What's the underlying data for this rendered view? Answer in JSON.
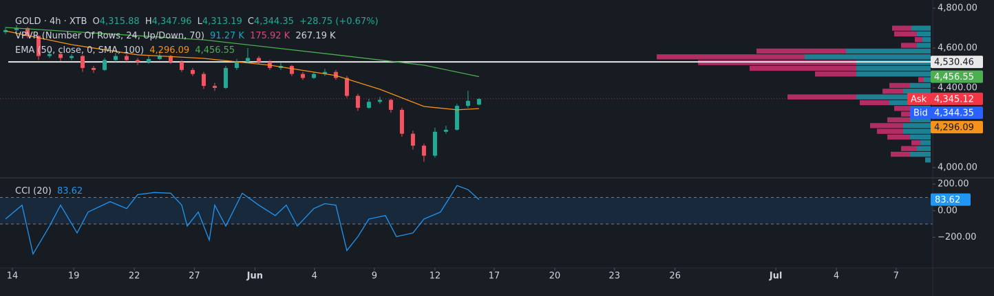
{
  "chart_data": [
    {
      "type": "candlestick",
      "title": "GOLD · 4h · XTB",
      "ohlc_names": [
        "O",
        "H",
        "L",
        "C"
      ],
      "ohlc": [
        {
          "value": 4315.88,
          "label": "4,315.88"
        },
        {
          "value": 4347.96,
          "label": "4,347.96"
        },
        {
          "value": 4313.19,
          "label": "4,313.19"
        },
        {
          "value": 4344.35,
          "label": "4,344.35"
        }
      ],
      "change": "+28.75 (+0.67%)",
      "xlim": [
        -1,
        168.4
      ],
      "ylim": [
        3952,
        4841
      ],
      "yticks": [
        {
          "value": 4000,
          "label": "4,000.00"
        },
        {
          "value": 4400,
          "label": "4,400.00"
        },
        {
          "value": 4600,
          "label": "4,600.00"
        },
        {
          "value": 4800,
          "label": "4,800.00"
        }
      ],
      "up_color": "#22ab94",
      "down_color": "#f7525f",
      "candles": {
        "x": [
          0,
          2,
          4,
          6,
          8,
          10,
          12,
          14,
          16,
          18,
          20,
          22,
          24,
          26,
          28,
          30,
          32,
          34,
          36,
          38,
          40,
          42,
          44,
          46,
          48,
          50,
          52,
          54,
          56,
          58,
          60,
          62,
          64,
          66,
          68,
          70,
          72,
          74,
          76,
          78,
          80,
          82,
          84,
          86
        ],
        "open": [
          4680,
          4690,
          4700,
          4660,
          4560,
          4570,
          4550,
          4560,
          4500,
          4490,
          4540,
          4560,
          4540,
          4530,
          4545,
          4560,
          4530,
          4490,
          4470,
          4410,
          4400,
          4500,
          4530,
          4550,
          4530,
          4500,
          4510,
          4470,
          4450,
          4470,
          4480,
          4450,
          4360,
          4300,
          4330,
          4340,
          4290,
          4170,
          4110,
          4060,
          4180,
          4190,
          4310,
          4315.88
        ],
        "high": [
          4705,
          4715,
          4705,
          4665,
          4585,
          4580,
          4570,
          4565,
          4510,
          4550,
          4575,
          4570,
          4550,
          4560,
          4575,
          4565,
          4540,
          4500,
          4480,
          4425,
          4510,
          4545,
          4600,
          4560,
          4540,
          4525,
          4515,
          4480,
          4480,
          4495,
          4490,
          4460,
          4370,
          4345,
          4355,
          4345,
          4300,
          4185,
          4120,
          4200,
          4210,
          4320,
          4385,
          4347.96
        ],
        "low": [
          4670,
          4680,
          4650,
          4540,
          4550,
          4535,
          4540,
          4480,
          4475,
          4485,
          4530,
          4530,
          4515,
          4520,
          4540,
          4520,
          4480,
          4460,
          4395,
          4385,
          4395,
          4490,
          4525,
          4520,
          4490,
          4490,
          4460,
          4440,
          4445,
          4460,
          4440,
          4350,
          4285,
          4295,
          4320,
          4275,
          4155,
          4090,
          4030,
          4050,
          4170,
          4185,
          4300,
          4313.19
        ],
        "close": [
          4690,
          4700,
          4660,
          4560,
          4570,
          4550,
          4560,
          4500,
          4490,
          4540,
          4560,
          4540,
          4530,
          4545,
          4560,
          4530,
          4490,
          4470,
          4410,
          4400,
          4500,
          4530,
          4550,
          4530,
          4500,
          4510,
          4470,
          4450,
          4470,
          4480,
          4450,
          4360,
          4300,
          4330,
          4340,
          4290,
          4170,
          4110,
          4060,
          4180,
          4190,
          4310,
          4335,
          4344.35
        ]
      },
      "indicator": "EMA (50, close, 0, SMA, 100)",
      "series": [
        {
          "name": "EMA 50",
          "color": "#f7931a",
          "x": [
            0,
            12,
            24,
            36,
            48,
            60,
            68,
            76,
            82,
            86
          ],
          "values": [
            4686,
            4617,
            4566,
            4548,
            4514,
            4462,
            4393,
            4307,
            4290,
            4296.09
          ],
          "value_labels": [
            null,
            null,
            null,
            null,
            null,
            null,
            null,
            null,
            null,
            "4,296.09"
          ]
        },
        {
          "name": "EMA 100",
          "color": "#4caf50",
          "x": [
            0,
            36,
            60,
            76,
            86
          ],
          "values": [
            4703,
            4641,
            4566,
            4514,
            4456.55
          ],
          "value_labels": [
            null,
            null,
            null,
            null,
            "4,456.55"
          ]
        }
      ],
      "vpvr": {
        "title": "VPVR (Number Of Rows, 24, Up/Down, 70)",
        "up_total": {
          "value": 91.27,
          "label": "91.27 K"
        },
        "down_total": {
          "value": 175.92,
          "label": "175.92 K"
        },
        "total": {
          "value": 267.19,
          "label": "267.19 K"
        },
        "price_range": [
          4714,
          4024
        ],
        "up_color": "#1f8ca0",
        "down_color": "#c2306b",
        "up": [
          2.8,
          2.0,
          1.2,
          2.0,
          12.3,
          18.3,
          10.8,
          10.8,
          10.8,
          1.0,
          3.0,
          4.0,
          10.8,
          6.0,
          3.0,
          2.0,
          3.0,
          4.0,
          4.0,
          3.0,
          1.5,
          2.0,
          3.0,
          0.8
        ],
        "down": [
          2.8,
          3.3,
          1.1,
          2.3,
          13.0,
          21.5,
          23.0,
          15.5,
          6.0,
          0.8,
          3.0,
          3.0,
          10.0,
          4.3,
          2.3,
          2.3,
          3.3,
          4.8,
          3.8,
          3.3,
          1.3,
          2.3,
          2.8,
          0
        ],
        "poc": {
          "value": 4530.46,
          "label": "4,530.46"
        }
      },
      "ask": {
        "name": "Ask",
        "value": 4345.12,
        "label": "4,345.12",
        "color": "#f23645"
      },
      "bid": {
        "name": "Bid",
        "value": 4344.35,
        "label": "4,344.35",
        "color": "#2962ff"
      }
    },
    {
      "type": "line",
      "xlim": [
        -1,
        168.4
      ],
      "ylim": [
        -353,
        242
      ],
      "yticks": [
        {
          "value": 200,
          "label": "200.00"
        },
        {
          "value": 0,
          "label": "0.00"
        },
        {
          "value": -200,
          "label": "−200.00"
        }
      ],
      "bands": [
        -100,
        100
      ],
      "xticks": [
        {
          "value": 1.25,
          "label": "14"
        },
        {
          "value": 12.4,
          "label": "19"
        },
        {
          "value": 23.4,
          "label": "22"
        },
        {
          "value": 34.3,
          "label": "27"
        },
        {
          "value": 45.3,
          "label": "Jun"
        },
        {
          "value": 56.1,
          "label": "4"
        },
        {
          "value": 67,
          "label": "9"
        },
        {
          "value": 78,
          "label": "12"
        },
        {
          "value": 88.75,
          "label": "17"
        },
        {
          "value": 99.75,
          "label": "20"
        },
        {
          "value": 110.6,
          "label": "23"
        },
        {
          "value": 121.6,
          "label": "26"
        },
        {
          "value": 139.9,
          "label": "Jul"
        },
        {
          "value": 150.9,
          "label": "4"
        },
        {
          "value": 161.75,
          "label": "7"
        }
      ],
      "series": [
        {
          "name": "CCI (20)",
          "color": "#2196f3",
          "x": [
            0,
            3,
            5,
            8,
            10,
            13,
            15,
            19,
            22,
            24,
            27,
            30,
            32,
            33,
            35,
            37,
            38,
            40,
            43,
            46,
            49,
            51,
            53,
            56,
            58,
            60,
            62,
            64,
            66,
            69,
            71,
            74,
            76,
            79,
            81,
            82,
            84,
            86
          ],
          "values": [
            -63,
            42,
            -326,
            -116,
            42,
            -168,
            -10,
            68,
            16,
            121,
            137,
            132,
            42,
            -116,
            -10,
            -221,
            42,
            -116,
            132,
            42,
            -37,
            42,
            -116,
            16,
            53,
            42,
            -300,
            -195,
            -63,
            -37,
            -195,
            -168,
            -63,
            -10,
            121,
            189,
            158,
            83.62
          ]
        }
      ]
    }
  ]
}
